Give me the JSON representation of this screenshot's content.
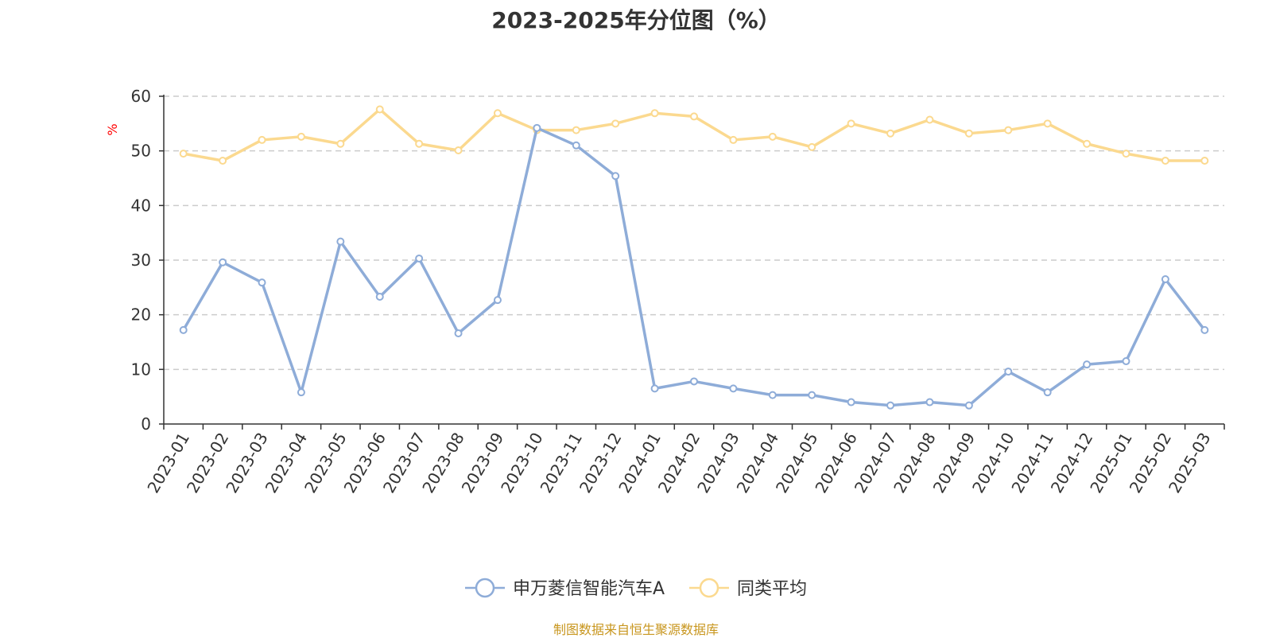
{
  "chart_data": {
    "type": "line",
    "title": "2023-2025年分位图（%）",
    "ylabel": "%",
    "ylim": [
      0,
      60
    ],
    "yticks": [
      0,
      10,
      20,
      30,
      40,
      50,
      60
    ],
    "grid": true,
    "legend_position": "bottom",
    "x": [
      "2023-01",
      "2023-02",
      "2023-03",
      "2023-04",
      "2023-05",
      "2023-06",
      "2023-07",
      "2023-08",
      "2023-09",
      "2023-10",
      "2023-11",
      "2023-12",
      "2024-01",
      "2024-02",
      "2024-03",
      "2024-04",
      "2024-05",
      "2024-06",
      "2024-07",
      "2024-08",
      "2024-09",
      "2024-10",
      "2024-11",
      "2024-12",
      "2025-01",
      "2025-02",
      "2025-03"
    ],
    "series": [
      {
        "name": "申万菱信智能汽车A",
        "color": "#8eacd8",
        "values": [
          17.2,
          29.6,
          25.9,
          5.8,
          33.4,
          23.3,
          30.3,
          16.6,
          22.7,
          54.2,
          51.0,
          45.4,
          6.5,
          7.8,
          6.5,
          5.3,
          5.3,
          4.0,
          3.4,
          4.0,
          3.4,
          9.6,
          5.8,
          10.9,
          11.5,
          26.5,
          17.2
        ]
      },
      {
        "name": "同类平均",
        "color": "#fbd98f",
        "values": [
          49.5,
          48.2,
          52.0,
          52.6,
          51.3,
          57.6,
          51.3,
          50.1,
          56.9,
          53.8,
          53.8,
          55.0,
          56.9,
          56.3,
          52.0,
          52.6,
          50.7,
          55.0,
          53.2,
          55.7,
          53.2,
          53.8,
          55.0,
          51.3,
          49.5,
          48.2,
          48.2
        ]
      }
    ]
  },
  "footer": {
    "source": "制图数据来自恒生聚源数据库",
    "source_color": "#c8961e"
  }
}
